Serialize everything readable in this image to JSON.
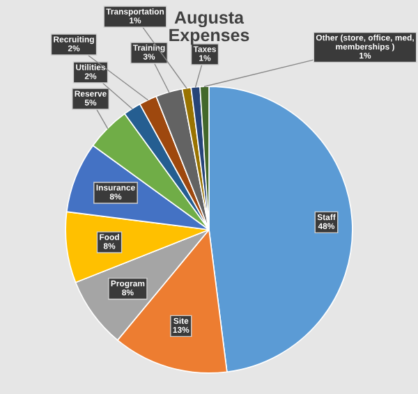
{
  "chart_data": {
    "type": "pie",
    "title": "Augusta\nExpenses",
    "categories": [
      "Staff",
      "Site",
      "Program",
      "Food",
      "Insurance",
      "Reserve",
      "Utilities",
      "Recruiting",
      "Training",
      "Transportation",
      "Taxes",
      "Other (store, office, med, memberships )"
    ],
    "values": [
      48,
      13,
      8,
      8,
      8,
      5,
      2,
      2,
      3,
      1,
      1,
      1
    ],
    "value_labels": [
      "48%",
      "13%",
      "8%",
      "8%",
      "8%",
      "5%",
      "2%",
      "2%",
      "3%",
      "1%",
      "1%",
      "1%"
    ],
    "colors": [
      "#5b9bd5",
      "#ed7d31",
      "#a5a5a5",
      "#ffc000",
      "#4472c4",
      "#70ad47",
      "#255e91",
      "#9e480e",
      "#636363",
      "#997300",
      "#264478",
      "#43682b"
    ],
    "legend": false
  }
}
